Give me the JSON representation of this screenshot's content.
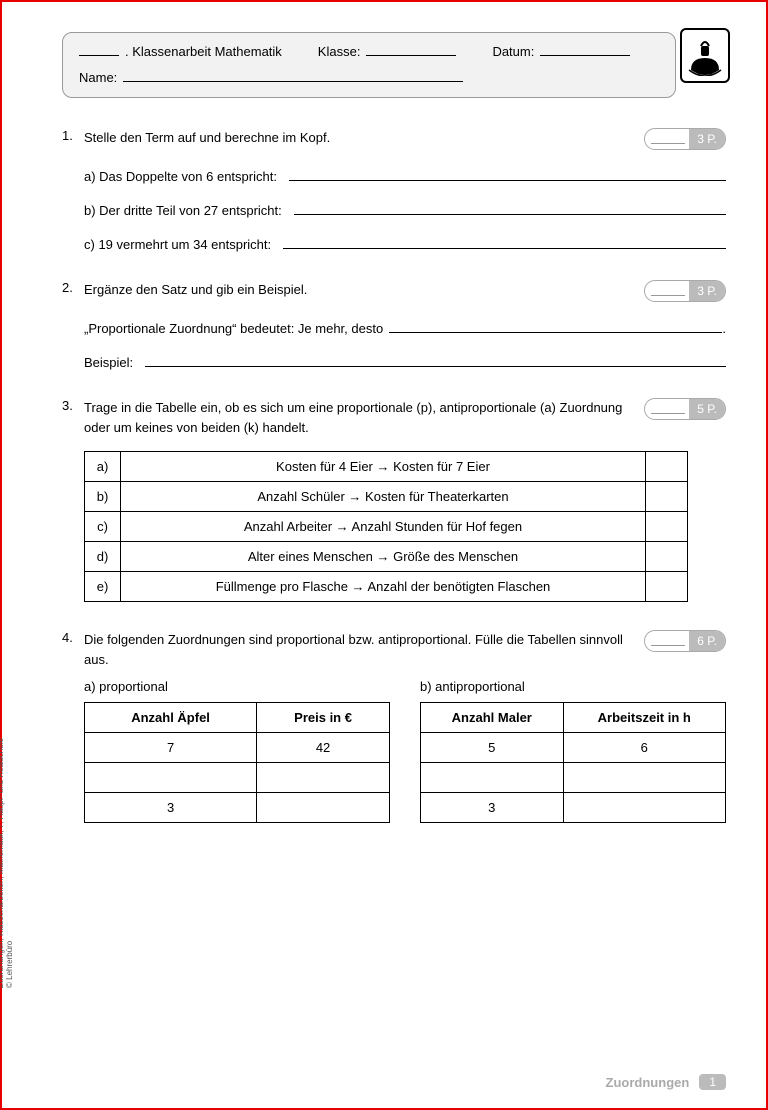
{
  "header": {
    "line1_title": ". Klassenarbeit Mathematik",
    "line1_klasse_label": "Klasse:",
    "line1_datum_label": "Datum:",
    "line2_name_label": "Name:"
  },
  "tasks": [
    {
      "num": "1.",
      "text": "Stelle den Term auf und berechne im Kopf.",
      "points": "3 P.",
      "subitems": [
        "a) Das Doppelte von 6 entspricht:",
        "b) Der dritte Teil von 27 entspricht:",
        "c) 19 vermehrt um 34 entspricht:"
      ]
    },
    {
      "num": "2.",
      "text": "Ergänze den Satz und gib ein Beispiel.",
      "points": "3 P.",
      "sentence_prefix": "„Proportionale Zuordnung“ bedeutet: Je mehr, desto",
      "sentence_suffix": ".",
      "example_label": "Beispiel:"
    },
    {
      "num": "3.",
      "text": "Trage in die Tabelle ein, ob es sich um eine proportionale (p), antiproportionale (a) Zuordnung oder um keines von beiden (k) handelt.",
      "points": "5 P.",
      "rows": [
        {
          "label": "a)",
          "desc": "Kosten für 4 Eier → Kosten für 7 Eier"
        },
        {
          "label": "b)",
          "desc": "Anzahl Schüler → Kosten für Theaterkarten"
        },
        {
          "label": "c)",
          "desc": "Anzahl Arbeiter → Anzahl Stunden für Hof fegen"
        },
        {
          "label": "d)",
          "desc": "Alter eines Menschen → Größe des Menschen"
        },
        {
          "label": "e)",
          "desc": "Füllmenge pro Flasche → Anzahl der benötigten Flaschen"
        }
      ]
    },
    {
      "num": "4.",
      "text": "Die folgenden Zuordnungen sind proportional bzw. antiproportional. Fülle die Tabellen sinnvoll aus.",
      "points": "6 P.",
      "tableA": {
        "caption": "a) proportional",
        "headers": [
          "Anzahl Äpfel",
          "Preis in €"
        ],
        "rows": [
          [
            "7",
            "42"
          ],
          [
            "",
            ""
          ],
          [
            "3",
            ""
          ]
        ]
      },
      "tableB": {
        "caption": "b) antiproportional",
        "headers": [
          "Anzahl Maler",
          "Arbeitszeit in h"
        ],
        "rows": [
          [
            "5",
            "6"
          ],
          [
            "",
            ""
          ],
          [
            "3",
            ""
          ]
        ]
      }
    }
  ],
  "side_credit": "Zuordnungen, Klassenarbeiten, Mathematik, 7, Haupt- und Realschule\n© Lehrerbüro",
  "footer_topic": "Zuordnungen",
  "footer_page": "1"
}
